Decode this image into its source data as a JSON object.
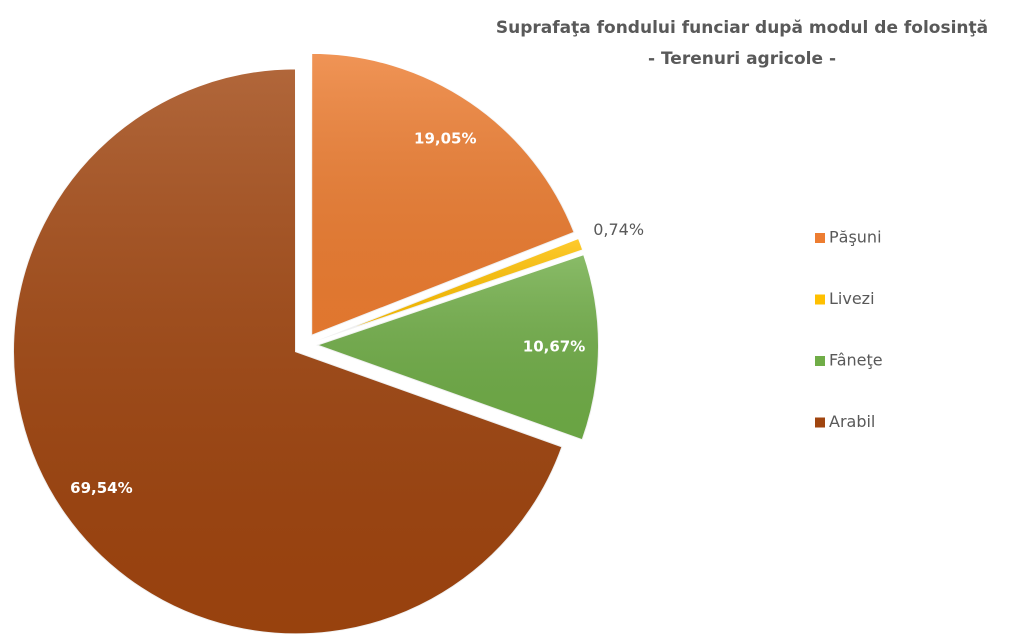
{
  "chart_data": {
    "type": "pie",
    "title": "Suprafaţa fondului funciar după modul de folosinţă",
    "subtitle": "- Terenuri agricole -",
    "categories": [
      "Păşuni",
      "Livezi",
      "Fâneţe",
      "Arabil"
    ],
    "values": [
      19.05,
      0.74,
      10.67,
      69.54
    ],
    "value_labels": [
      "19,05%",
      "0,74%",
      "10,67%",
      "69,54%"
    ],
    "colors": [
      "#ed7d31",
      "#ffc000",
      "#70ad47",
      "#a0450f"
    ],
    "legend": "right"
  }
}
